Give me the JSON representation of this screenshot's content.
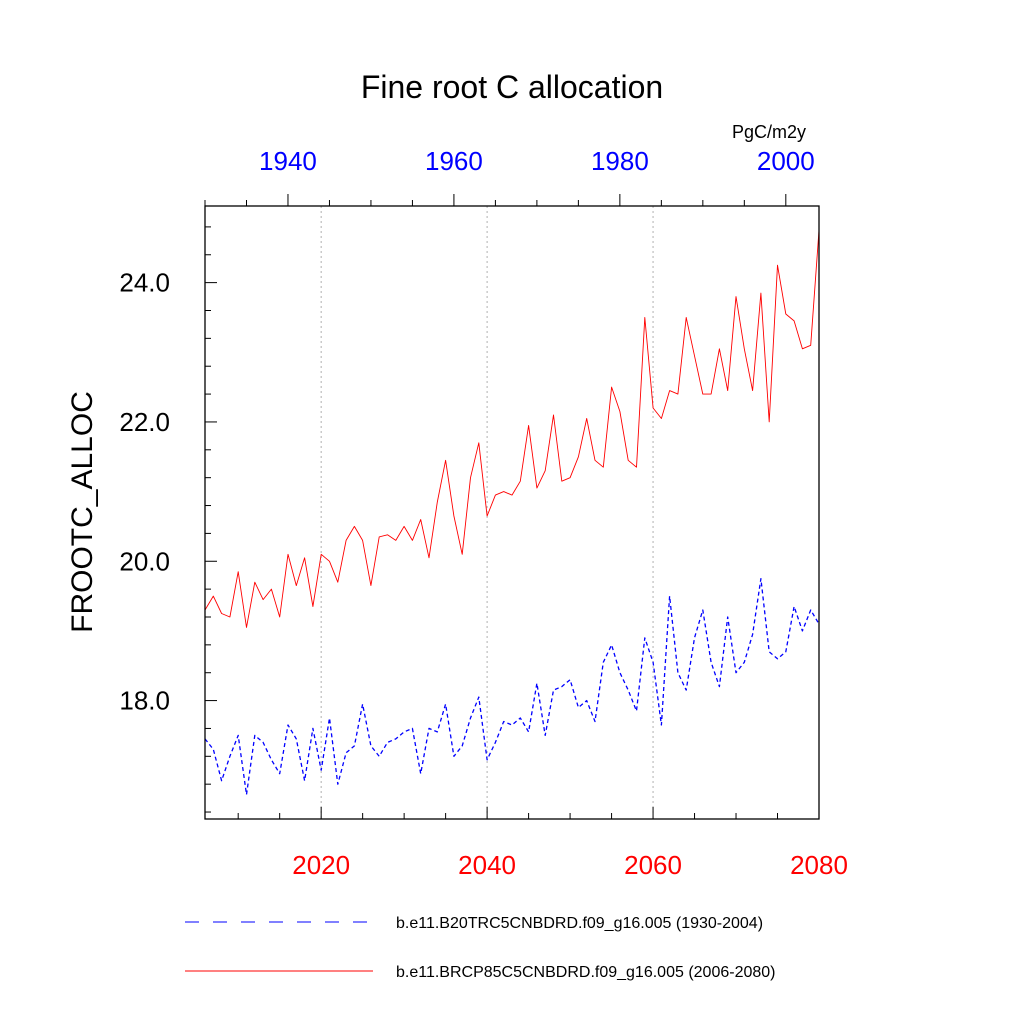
{
  "chart_data": {
    "type": "line",
    "title": "Fine root C allocation",
    "ylabel": "FROOTC_ALLOC",
    "units": "PgC/m2y",
    "ylim": [
      16.3,
      25.1
    ],
    "yticks": [
      18.0,
      20.0,
      22.0,
      24.0
    ],
    "ytick_labels": [
      "18.0",
      "20.0",
      "22.0",
      "24.0"
    ],
    "grid": "vertical dotted at bottom-axis major ticks",
    "bottom_axis": {
      "color": "#ff0000",
      "range": [
        2006,
        2080
      ],
      "ticks": [
        2020,
        2040,
        2060,
        2080
      ],
      "tick_labels": [
        "2020",
        "2040",
        "2060",
        "2080"
      ]
    },
    "top_axis": {
      "color": "#0000ff",
      "range": [
        1930,
        2004
      ],
      "ticks": [
        1940,
        1960,
        1980,
        2000
      ],
      "tick_labels": [
        "1940",
        "1960",
        "1980",
        "2000"
      ]
    },
    "series": [
      {
        "name": "b.e11.B20TRC5CNBDRD.f09_g16.005 (1930-2004)",
        "color": "#0000ff",
        "style": "dashed",
        "axis": "top",
        "x": [
          1930,
          1931,
          1932,
          1933,
          1934,
          1935,
          1936,
          1937,
          1938,
          1939,
          1940,
          1941,
          1942,
          1943,
          1944,
          1945,
          1946,
          1947,
          1948,
          1949,
          1950,
          1951,
          1952,
          1953,
          1954,
          1955,
          1956,
          1957,
          1958,
          1959,
          1960,
          1961,
          1962,
          1963,
          1964,
          1965,
          1966,
          1967,
          1968,
          1969,
          1970,
          1971,
          1972,
          1973,
          1974,
          1975,
          1976,
          1977,
          1978,
          1979,
          1980,
          1981,
          1982,
          1983,
          1984,
          1985,
          1986,
          1987,
          1988,
          1989,
          1990,
          1991,
          1992,
          1993,
          1994,
          1995,
          1996,
          1997,
          1998,
          1999,
          2000,
          2001,
          2002,
          2003,
          2004
        ],
        "values": [
          17.45,
          17.3,
          16.85,
          17.2,
          17.5,
          16.65,
          17.5,
          17.4,
          17.15,
          16.95,
          17.65,
          17.45,
          16.85,
          17.6,
          17.0,
          17.75,
          16.8,
          17.25,
          17.35,
          17.95,
          17.35,
          17.2,
          17.4,
          17.45,
          17.55,
          17.6,
          16.95,
          17.6,
          17.55,
          17.95,
          17.2,
          17.35,
          17.75,
          18.05,
          17.15,
          17.4,
          17.7,
          17.65,
          17.75,
          17.55,
          18.25,
          17.5,
          18.15,
          18.2,
          18.3,
          17.9,
          18.0,
          17.7,
          18.55,
          18.8,
          18.4,
          18.15,
          17.85,
          18.9,
          18.55,
          17.65,
          19.5,
          18.4,
          18.15,
          18.9,
          19.3,
          18.55,
          18.2,
          19.2,
          18.4,
          18.55,
          18.95,
          19.75,
          18.7,
          18.6,
          18.7,
          19.35,
          19.0,
          19.3,
          19.1
        ]
      },
      {
        "name": "b.e11.BRCP85C5CNBDRD.f09_g16.005 (2006-2080)",
        "color": "#ff0000",
        "style": "solid",
        "axis": "bottom",
        "x": [
          2006,
          2007,
          2008,
          2009,
          2010,
          2011,
          2012,
          2013,
          2014,
          2015,
          2016,
          2017,
          2018,
          2019,
          2020,
          2021,
          2022,
          2023,
          2024,
          2025,
          2026,
          2027,
          2028,
          2029,
          2030,
          2031,
          2032,
          2033,
          2034,
          2035,
          2036,
          2037,
          2038,
          2039,
          2040,
          2041,
          2042,
          2043,
          2044,
          2045,
          2046,
          2047,
          2048,
          2049,
          2050,
          2051,
          2052,
          2053,
          2054,
          2055,
          2056,
          2057,
          2058,
          2059,
          2060,
          2061,
          2062,
          2063,
          2064,
          2065,
          2066,
          2067,
          2068,
          2069,
          2070,
          2071,
          2072,
          2073,
          2074,
          2075,
          2076,
          2077,
          2078,
          2079,
          2080
        ],
        "values": [
          19.3,
          19.5,
          19.25,
          19.2,
          19.85,
          19.05,
          19.7,
          19.45,
          19.6,
          19.2,
          20.1,
          19.65,
          20.05,
          19.35,
          20.1,
          20.0,
          19.7,
          20.3,
          20.5,
          20.3,
          19.65,
          20.35,
          20.38,
          20.3,
          20.5,
          20.3,
          20.6,
          20.05,
          20.85,
          21.45,
          20.65,
          20.1,
          21.2,
          21.7,
          20.65,
          20.95,
          21.0,
          20.95,
          21.15,
          21.95,
          21.05,
          21.3,
          22.1,
          21.15,
          21.2,
          21.5,
          22.05,
          21.45,
          21.35,
          22.5,
          22.15,
          21.45,
          21.35,
          23.5,
          22.2,
          22.05,
          22.45,
          22.4,
          23.5,
          22.95,
          22.4,
          22.4,
          23.05,
          22.45,
          23.8,
          23.05,
          22.45,
          23.85,
          22.0,
          24.25,
          23.55,
          23.45,
          23.05,
          23.1,
          24.75
        ]
      }
    ]
  }
}
